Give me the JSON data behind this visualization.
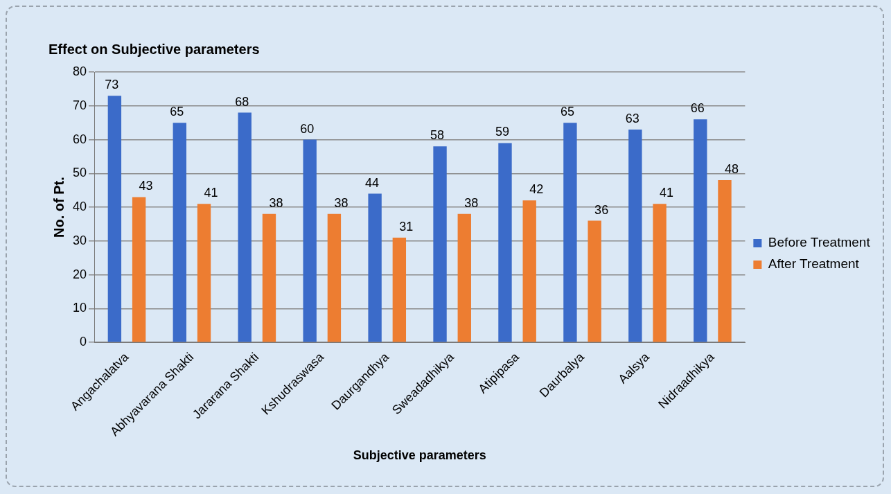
{
  "chart_data": {
    "type": "bar",
    "title": "Effect on Subjective parameters",
    "xlabel": "Subjective parameters",
    "ylabel": "No. of Pt.",
    "categories": [
      "Angachalatva",
      "Abhyavarana Shakti",
      "Jararana Shakti",
      "Kshudraswasa",
      "Daurgandhya",
      "Sweadadhikya",
      "Atipipasa",
      "Daurbalya",
      "Aalsya",
      "Nidraadhikya"
    ],
    "series": [
      {
        "name": "Before Treatment",
        "color": "#3b6bc9",
        "values": [
          73,
          65,
          68,
          60,
          44,
          58,
          59,
          65,
          63,
          66
        ]
      },
      {
        "name": "After Treatment",
        "color": "#ed7d31",
        "values": [
          43,
          41,
          38,
          38,
          31,
          38,
          42,
          36,
          41,
          48
        ]
      }
    ],
    "ylim": [
      0,
      80
    ],
    "yticks": [
      0,
      10,
      20,
      30,
      40,
      50,
      60,
      70,
      80
    ],
    "grid": "y",
    "legend": "right",
    "data_labels": true
  }
}
